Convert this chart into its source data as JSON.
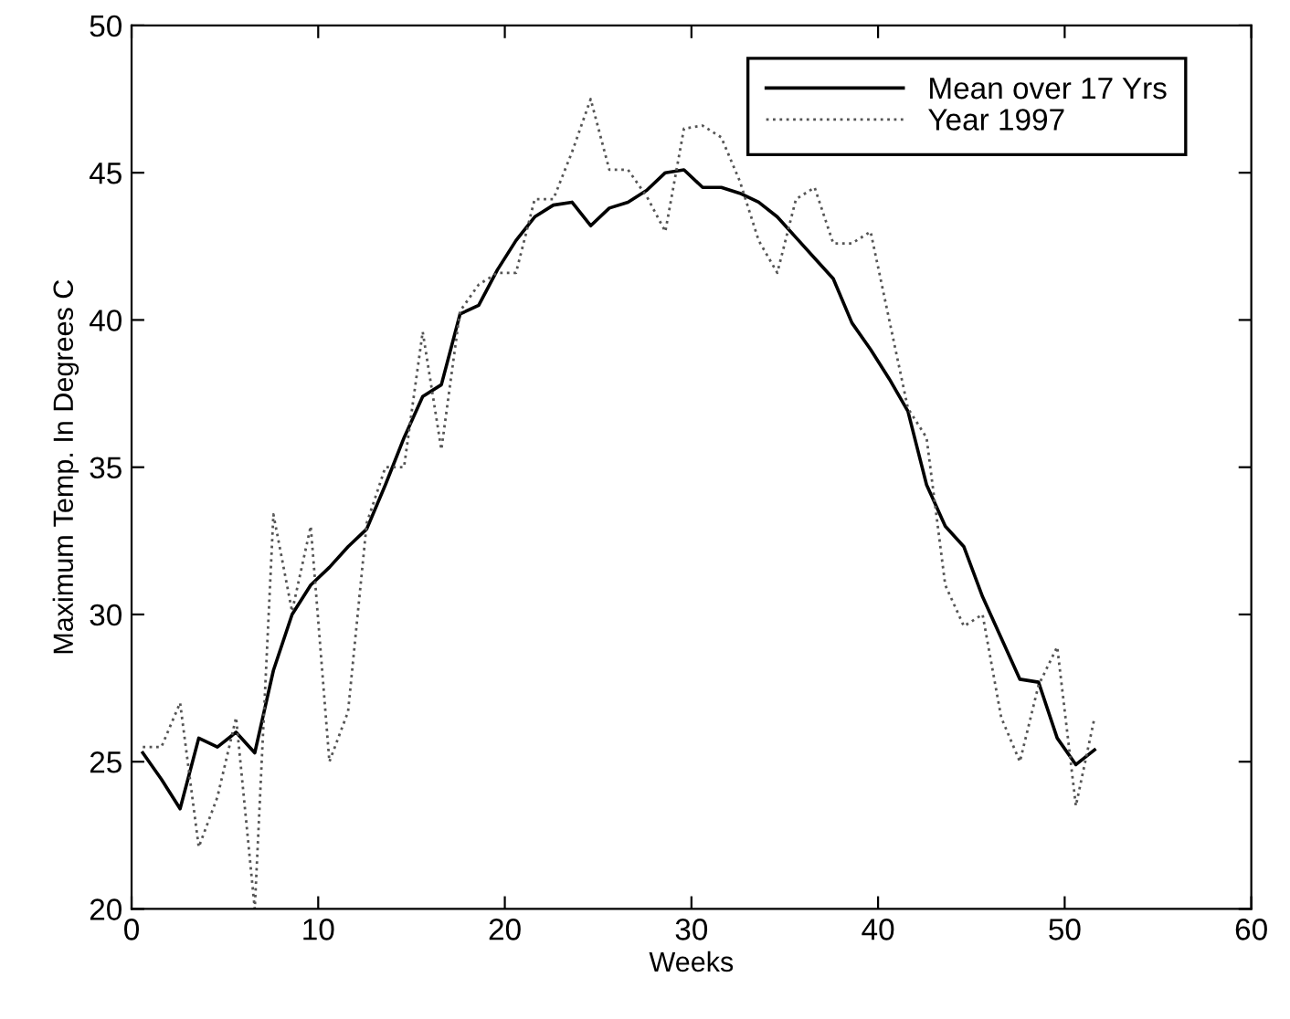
{
  "chart_data": {
    "type": "line",
    "xlabel": "Weeks",
    "ylabel": "Maximum Temp. In Degrees C",
    "x": [
      0.6,
      1.6,
      2.6,
      3.6,
      4.6,
      5.6,
      6.6,
      7.6,
      8.6,
      9.6,
      10.6,
      11.6,
      12.6,
      13.6,
      14.6,
      15.6,
      16.6,
      17.6,
      18.6,
      19.6,
      20.6,
      21.6,
      22.6,
      23.6,
      24.6,
      25.6,
      26.6,
      27.6,
      28.6,
      29.6,
      30.6,
      31.6,
      32.6,
      33.6,
      34.6,
      35.6,
      36.6,
      37.6,
      38.6,
      39.6,
      40.6,
      41.6,
      42.6,
      43.6,
      44.6,
      45.6,
      46.6,
      47.6,
      48.6,
      49.6,
      50.6,
      51.6
    ],
    "series": [
      {
        "name": "Mean over 17 Yrs",
        "color": "#000000",
        "line_style": "solid",
        "values": [
          25.3,
          24.4,
          23.4,
          25.8,
          25.5,
          26.0,
          25.3,
          28.1,
          30.0,
          31.0,
          31.6,
          32.3,
          32.9,
          34.4,
          36.0,
          37.4,
          37.8,
          40.2,
          40.5,
          41.7,
          42.7,
          43.5,
          43.9,
          44.0,
          43.2,
          43.8,
          44.0,
          44.4,
          45.0,
          45.1,
          44.5,
          44.5,
          44.3,
          44.0,
          43.5,
          42.8,
          42.1,
          41.4,
          39.9,
          39.0,
          38.0,
          36.9,
          34.4,
          33.0,
          32.3,
          30.6,
          29.2,
          27.8,
          27.7,
          25.8,
          24.9,
          25.4
        ]
      },
      {
        "name": "Year 1997",
        "color": "#555555",
        "line_style": "dotted",
        "values": [
          25.5,
          25.5,
          27.0,
          22.1,
          23.8,
          26.5,
          20.0,
          33.4,
          30.1,
          33.0,
          25.0,
          26.7,
          33.1,
          35.0,
          35.0,
          39.6,
          35.6,
          40.3,
          41.2,
          41.6,
          41.6,
          44.1,
          44.1,
          45.7,
          47.5,
          45.1,
          45.1,
          44.2,
          43.0,
          46.5,
          46.6,
          46.2,
          44.7,
          42.7,
          41.6,
          44.1,
          44.5,
          42.6,
          42.6,
          43.0,
          40.0,
          37.0,
          36.0,
          31.0,
          29.6,
          30.0,
          26.5,
          25.0,
          27.6,
          28.9,
          23.5,
          26.5
        ]
      }
    ],
    "xlim": [
      0,
      60
    ],
    "xticks": [
      0,
      10,
      20,
      30,
      40,
      50,
      60
    ],
    "ylim": [
      20,
      50
    ],
    "yticks": [
      20,
      25,
      30,
      35,
      40,
      45,
      50
    ],
    "grid": false,
    "legend": "top right",
    "marker": "none"
  }
}
